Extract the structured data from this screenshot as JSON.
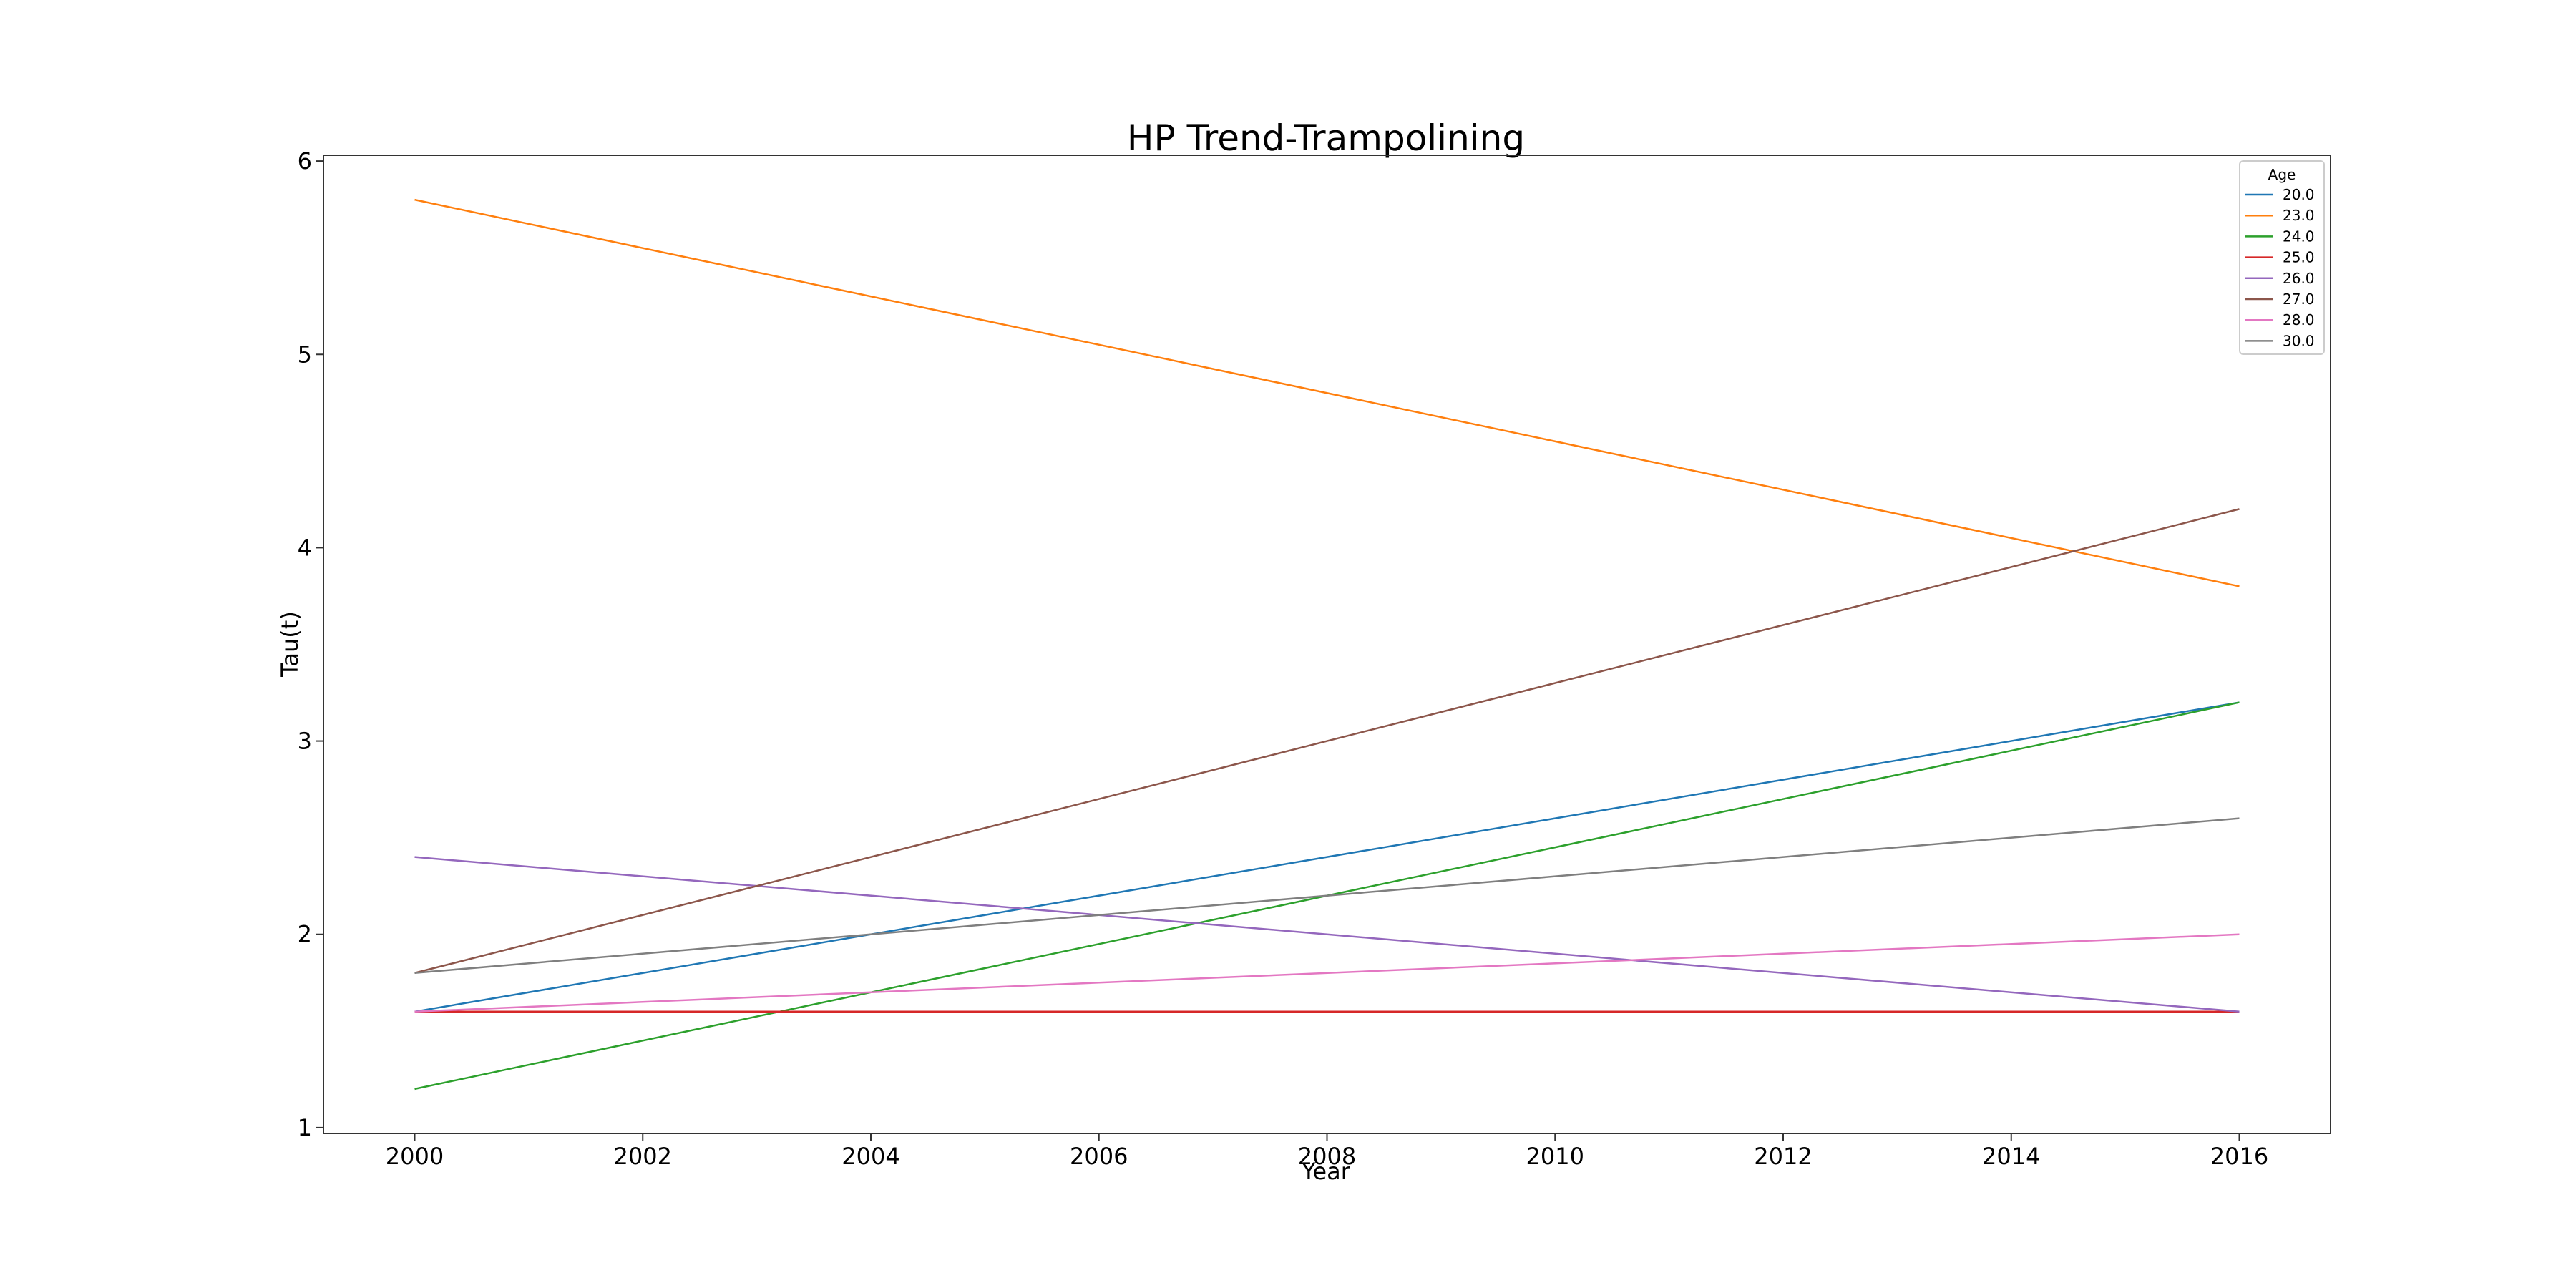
{
  "chart_data": {
    "type": "line",
    "title": "HP Trend-Trampolining",
    "xlabel": "Year",
    "ylabel": "Tau(t)",
    "xlim": [
      1999.2,
      2016.8
    ],
    "ylim": [
      0.97,
      6.03
    ],
    "xticks": [
      2000,
      2002,
      2004,
      2006,
      2008,
      2010,
      2012,
      2014,
      2016
    ],
    "xtick_labels": [
      "2000",
      "2002",
      "2004",
      "2006",
      "2008",
      "2010",
      "2012",
      "2014",
      "2016"
    ],
    "yticks": [
      1,
      2,
      3,
      4,
      5,
      6
    ],
    "ytick_labels": [
      "1",
      "2",
      "3",
      "4",
      "5",
      "6"
    ],
    "grid": false,
    "legend": {
      "title": "Age",
      "position": "top-right"
    },
    "x": [
      2000,
      2016
    ],
    "series": [
      {
        "name": "20.0",
        "color": "#1f77b4",
        "values": [
          1.6,
          3.2
        ]
      },
      {
        "name": "23.0",
        "color": "#ff7f0e",
        "values": [
          5.8,
          3.8
        ]
      },
      {
        "name": "24.0",
        "color": "#2ca02c",
        "values": [
          1.2,
          3.2
        ]
      },
      {
        "name": "25.0",
        "color": "#d62728",
        "values": [
          1.6,
          1.6
        ]
      },
      {
        "name": "26.0",
        "color": "#9467bd",
        "values": [
          2.4,
          1.6
        ]
      },
      {
        "name": "27.0",
        "color": "#8c564b",
        "values": [
          1.8,
          4.2
        ]
      },
      {
        "name": "28.0",
        "color": "#e377c2",
        "values": [
          1.6,
          2.0
        ]
      },
      {
        "name": "30.0",
        "color": "#7f7f7f",
        "values": [
          1.8,
          2.6
        ]
      }
    ]
  }
}
